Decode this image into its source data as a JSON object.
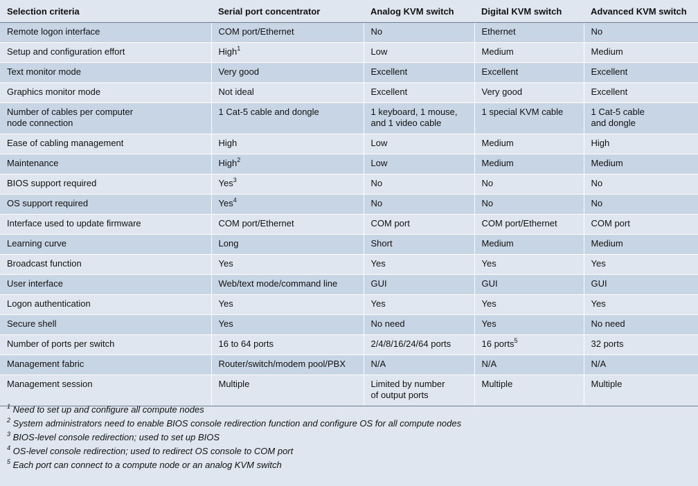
{
  "header": [
    "Selection criteria",
    "Serial port concentrator",
    "Analog KVM switch",
    "Digital KVM switch",
    "Advanced KVM switch"
  ],
  "rows": [
    {
      "cells": [
        {
          "t": "Remote logon interface"
        },
        {
          "t": "COM port/Ethernet"
        },
        {
          "t": "No"
        },
        {
          "t": "Ethernet"
        },
        {
          "t": "No"
        }
      ]
    },
    {
      "cells": [
        {
          "t": "Setup and configuration effort"
        },
        {
          "t": "High",
          "sup": "1"
        },
        {
          "t": "Low"
        },
        {
          "t": "Medium"
        },
        {
          "t": "Medium"
        }
      ]
    },
    {
      "cells": [
        {
          "t": "Text monitor mode"
        },
        {
          "t": "Very good"
        },
        {
          "t": "Excellent"
        },
        {
          "t": "Excellent"
        },
        {
          "t": "Excellent"
        }
      ]
    },
    {
      "cells": [
        {
          "t": "Graphics monitor mode"
        },
        {
          "t": "Not ideal"
        },
        {
          "t": "Excellent"
        },
        {
          "t": "Very good"
        },
        {
          "t": "Excellent"
        }
      ]
    },
    {
      "cells": [
        {
          "t": "Number of cables per computer",
          "t2": "node connection"
        },
        {
          "t": "1 Cat-5 cable and dongle"
        },
        {
          "t": "1 keyboard, 1 mouse,",
          "t2": "and 1 video cable"
        },
        {
          "t": "1 special KVM cable"
        },
        {
          "t": "1 Cat-5 cable",
          "t2": "and dongle"
        }
      ]
    },
    {
      "cells": [
        {
          "t": "Ease of cabling management"
        },
        {
          "t": "High"
        },
        {
          "t": "Low"
        },
        {
          "t": "Medium"
        },
        {
          "t": "High"
        }
      ]
    },
    {
      "cells": [
        {
          "t": "Maintenance"
        },
        {
          "t": "High",
          "sup": "2"
        },
        {
          "t": "Low"
        },
        {
          "t": "Medium"
        },
        {
          "t": "Medium"
        }
      ]
    },
    {
      "cells": [
        {
          "t": "BIOS support required"
        },
        {
          "t": "Yes",
          "sup": "3"
        },
        {
          "t": "No"
        },
        {
          "t": "No"
        },
        {
          "t": "No"
        }
      ]
    },
    {
      "cells": [
        {
          "t": "OS support required"
        },
        {
          "t": "Yes",
          "sup": "4"
        },
        {
          "t": "No"
        },
        {
          "t": "No"
        },
        {
          "t": "No"
        }
      ]
    },
    {
      "cells": [
        {
          "t": "Interface used to update firmware"
        },
        {
          "t": "COM port/Ethernet"
        },
        {
          "t": "COM port"
        },
        {
          "t": "COM port/Ethernet"
        },
        {
          "t": "COM port"
        }
      ]
    },
    {
      "cells": [
        {
          "t": "Learning curve"
        },
        {
          "t": "Long"
        },
        {
          "t": "Short"
        },
        {
          "t": "Medium"
        },
        {
          "t": "Medium"
        }
      ]
    },
    {
      "cells": [
        {
          "t": "Broadcast function"
        },
        {
          "t": "Yes"
        },
        {
          "t": "Yes"
        },
        {
          "t": "Yes"
        },
        {
          "t": "Yes"
        }
      ]
    },
    {
      "cells": [
        {
          "t": "User interface"
        },
        {
          "t": "Web/text mode/command line"
        },
        {
          "t": "GUI"
        },
        {
          "t": "GUI"
        },
        {
          "t": "GUI"
        }
      ]
    },
    {
      "cells": [
        {
          "t": "Logon authentication"
        },
        {
          "t": "Yes"
        },
        {
          "t": "Yes"
        },
        {
          "t": "Yes"
        },
        {
          "t": "Yes"
        }
      ]
    },
    {
      "cells": [
        {
          "t": "Secure shell"
        },
        {
          "t": "Yes"
        },
        {
          "t": "No need"
        },
        {
          "t": "Yes"
        },
        {
          "t": "No need"
        }
      ]
    },
    {
      "cells": [
        {
          "t": "Number of ports per switch"
        },
        {
          "t": "16 to 64 ports"
        },
        {
          "t": "2/4/8/16/24/64 ports"
        },
        {
          "t": "16 ports",
          "sup": "5"
        },
        {
          "t": "32 ports"
        }
      ]
    },
    {
      "cells": [
        {
          "t": "Management fabric"
        },
        {
          "t": "Router/switch/modem pool/PBX"
        },
        {
          "t": "N/A"
        },
        {
          "t": "N/A"
        },
        {
          "t": "N/A"
        }
      ]
    },
    {
      "cells": [
        {
          "t": "Management session"
        },
        {
          "t": "Multiple"
        },
        {
          "t": "Limited by number",
          "t2": "of output ports"
        },
        {
          "t": "Multiple"
        },
        {
          "t": "Multiple"
        }
      ]
    }
  ],
  "footnotes": [
    {
      "n": "1",
      "text": " Need to set up and configure all compute nodes"
    },
    {
      "n": "2",
      "text": " System administrators need to enable BIOS console redirection function and configure OS for all compute nodes"
    },
    {
      "n": "3",
      "text": " BIOS-level console redirection; used to set up BIOS"
    },
    {
      "n": "4",
      "text": " OS-level console redirection; used to redirect OS console to COM port"
    },
    {
      "n": "5",
      "text": " Each port can connect to a compute node or an analog KVM switch"
    }
  ]
}
